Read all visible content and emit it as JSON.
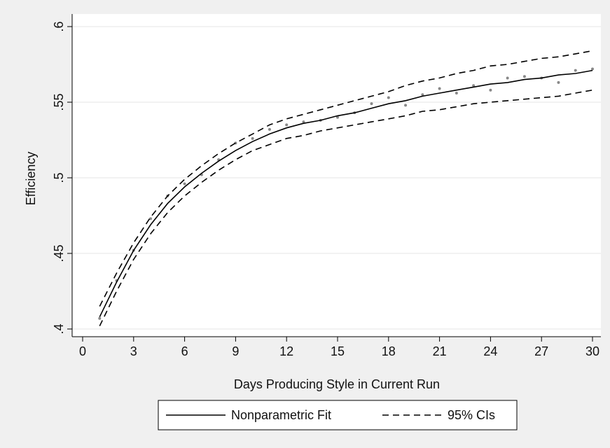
{
  "chart_data": {
    "type": "line",
    "xlabel": "Days Producing Style in Current Run",
    "ylabel": "Efficiency",
    "xlim": [
      0,
      30
    ],
    "ylim": [
      0.4,
      0.6
    ],
    "xticks": [
      0,
      3,
      6,
      9,
      12,
      15,
      18,
      21,
      24,
      27,
      30
    ],
    "xtick_labels": [
      "0",
      "3",
      "6",
      "9",
      "12",
      "15",
      "18",
      "21",
      "24",
      "27",
      "30"
    ],
    "yticks": [
      0.4,
      0.45,
      0.5,
      0.55,
      0.6
    ],
    "ytick_labels": [
      ".4",
      ".45",
      ".5",
      ".55",
      ".6"
    ],
    "grid": "horizontal",
    "legend_position": "bottom",
    "legend": [
      "Nonparametric Fit",
      "95% CIs"
    ],
    "colors": {
      "background": "#f0f0f0",
      "plot_background": "#ffffff",
      "grid": "#e6e6e6",
      "line": "#000000",
      "points": "#888888"
    },
    "x": [
      1,
      2,
      3,
      4,
      5,
      6,
      7,
      8,
      9,
      10,
      11,
      12,
      13,
      14,
      15,
      16,
      17,
      18,
      19,
      20,
      21,
      22,
      23,
      24,
      25,
      26,
      27,
      28,
      29,
      30
    ],
    "points": [
      0.407,
      0.432,
      0.452,
      0.473,
      0.488,
      0.496,
      0.502,
      0.512,
      0.523,
      0.526,
      0.532,
      0.535,
      0.537,
      0.538,
      0.54,
      0.543,
      0.549,
      0.553,
      0.548,
      0.555,
      0.559,
      0.556,
      0.561,
      0.558,
      0.566,
      0.567,
      0.566,
      0.563,
      0.571,
      0.572
    ],
    "series": [
      {
        "name": "Nonparametric Fit",
        "style": "solid",
        "values": [
          0.408,
          0.431,
          0.452,
          0.469,
          0.483,
          0.494,
          0.503,
          0.511,
          0.518,
          0.524,
          0.529,
          0.533,
          0.536,
          0.538,
          0.541,
          0.543,
          0.546,
          0.549,
          0.551,
          0.554,
          0.556,
          0.558,
          0.56,
          0.562,
          0.563,
          0.565,
          0.566,
          0.568,
          0.569,
          0.571
        ]
      },
      {
        "name": "95% CIs",
        "style": "dashed",
        "values": [
          0.415,
          0.437,
          0.457,
          0.474,
          0.488,
          0.499,
          0.508,
          0.516,
          0.523,
          0.529,
          0.535,
          0.539,
          0.542,
          0.545,
          0.548,
          0.551,
          0.554,
          0.557,
          0.561,
          0.564,
          0.566,
          0.569,
          0.571,
          0.574,
          0.575,
          0.577,
          0.579,
          0.58,
          0.582,
          0.584
        ]
      },
      {
        "name": "95% CIs",
        "style": "dashed",
        "values": [
          0.402,
          0.425,
          0.446,
          0.463,
          0.477,
          0.488,
          0.497,
          0.505,
          0.512,
          0.518,
          0.522,
          0.526,
          0.528,
          0.531,
          0.533,
          0.535,
          0.537,
          0.539,
          0.541,
          0.544,
          0.545,
          0.547,
          0.549,
          0.55,
          0.551,
          0.552,
          0.553,
          0.554,
          0.556,
          0.558
        ]
      }
    ]
  }
}
